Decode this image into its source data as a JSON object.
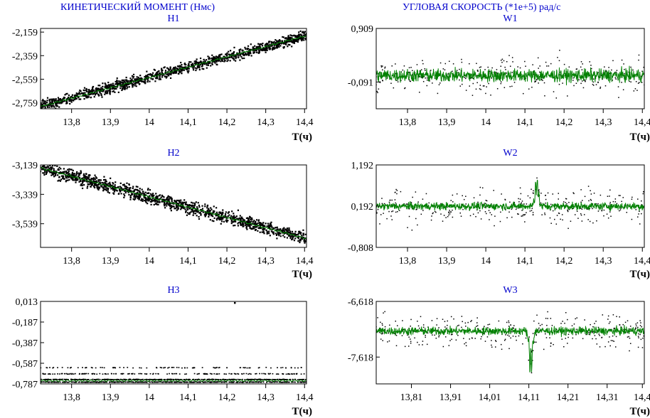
{
  "headers": {
    "left": "КИНЕТИЧЕСКИЙ МОМЕНТ  (Нмс)",
    "right": "УГЛОВАЯ СКОРОСТЬ     (*1e+5) рад/с"
  },
  "colors": {
    "line": "#008000",
    "points": "#000000",
    "title": "#0000cc"
  },
  "chart_data": [
    {
      "id": "H1",
      "type": "line",
      "title": "H1",
      "xlabel": "T(ч)",
      "xlim": [
        13.72,
        14.405
      ],
      "ylim": [
        -2.81,
        -2.128
      ],
      "xticks": [
        13.8,
        13.9,
        14.0,
        14.1,
        14.2,
        14.3,
        14.4
      ],
      "xtick_labels": [
        "13,8",
        "13,9",
        "14",
        "14,1",
        "14,2",
        "14,3",
        "14,4"
      ],
      "yticks": [
        -2.159,
        -2.359,
        -2.559,
        -2.759
      ],
      "ytick_labels": [
        "-2,159",
        "-2,359",
        "-2,559",
        "-2,759"
      ],
      "series": [
        {
          "x": [
            13.72,
            14.405
          ],
          "y": [
            -2.79,
            -2.19
          ]
        }
      ]
    },
    {
      "id": "W1",
      "type": "line",
      "title": "W1",
      "xlabel": "T(ч)",
      "xlim": [
        13.72,
        14.405
      ],
      "ylim": [
        -0.591,
        0.909
      ],
      "xticks": [
        13.8,
        13.9,
        14.0,
        14.1,
        14.2,
        14.3,
        14.4
      ],
      "xtick_labels": [
        "13,8",
        "13,9",
        "14",
        "14,1",
        "14,2",
        "14,3",
        "14,4"
      ],
      "yticks": [
        0.909,
        -0.091
      ],
      "ytick_labels": [
        "0,909",
        "-0,091"
      ],
      "series": [
        {
          "mean": 0.03,
          "amplitude": 0.2
        }
      ]
    },
    {
      "id": "H2",
      "type": "line",
      "title": "H2",
      "xlabel": "T(ч)",
      "xlim": [
        13.72,
        14.405
      ],
      "ylim": [
        -3.7,
        -3.139
      ],
      "xticks": [
        13.8,
        13.9,
        14.0,
        14.1,
        14.2,
        14.3,
        14.4
      ],
      "xtick_labels": [
        "13,8",
        "13,9",
        "14",
        "14,1",
        "14,2",
        "14,3",
        "14,4"
      ],
      "yticks": [
        -3.139,
        -3.339,
        -3.539
      ],
      "ytick_labels": [
        "-3,139",
        "-3,339",
        "-3,539"
      ],
      "series": [
        {
          "x": [
            13.72,
            14.405
          ],
          "y": [
            -3.16,
            -3.64
          ]
        }
      ]
    },
    {
      "id": "W2",
      "type": "line",
      "title": "W2",
      "xlabel": "T(ч)",
      "xlim": [
        13.72,
        14.405
      ],
      "ylim": [
        -0.808,
        1.192
      ],
      "xticks": [
        13.8,
        13.9,
        14.0,
        14.1,
        14.2,
        14.3,
        14.4
      ],
      "xtick_labels": [
        "13,8",
        "13,9",
        "14",
        "14,1",
        "14,2",
        "14,3",
        "14,4"
      ],
      "yticks": [
        1.192,
        0.192,
        -0.808
      ],
      "ytick_labels": [
        "1,192",
        "0,192",
        "-0,808"
      ],
      "series": [
        {
          "mean": 0.19,
          "amplitude": 0.15,
          "spike_x": 14.13,
          "spike_peak": 0.95
        }
      ]
    },
    {
      "id": "H3",
      "type": "line",
      "title": "H3",
      "xlabel": "T(ч)",
      "xlim": [
        13.72,
        14.405
      ],
      "ylim": [
        -0.787,
        0.013
      ],
      "xticks": [
        13.8,
        13.9,
        14.0,
        14.1,
        14.2,
        14.3,
        14.4
      ],
      "xtick_labels": [
        "13,8",
        "13,9",
        "14",
        "14,1",
        "14,2",
        "14,3",
        "14,4"
      ],
      "yticks": [
        0.013,
        -0.187,
        -0.387,
        -0.587,
        -0.787
      ],
      "ytick_labels": [
        "0,013",
        "-0,187",
        "-0,387",
        "-0,587",
        "-0,787"
      ],
      "series": [
        {
          "mean": -0.76,
          "rows": [
            -0.63,
            -0.69,
            -0.745,
            -0.77
          ]
        }
      ]
    },
    {
      "id": "W3",
      "type": "line",
      "title": "W3",
      "xlabel": "T(ч)",
      "xlim": [
        13.72,
        14.405
      ],
      "ylim": [
        -8.1,
        -6.618
      ],
      "xticks": [
        13.81,
        13.91,
        14.01,
        14.11,
        14.21,
        14.31,
        14.4
      ],
      "xtick_labels": [
        "13,81",
        "13,91",
        "14,01",
        "14,11",
        "14,21",
        "14,31",
        "14,4"
      ],
      "yticks": [
        -6.618,
        -7.618
      ],
      "ytick_labels": [
        "-6,618",
        "-7,618"
      ],
      "series": [
        {
          "mean": -7.15,
          "amplitude": 0.12,
          "spike_x": 14.115,
          "spike_peak": -7.98
        }
      ]
    }
  ]
}
